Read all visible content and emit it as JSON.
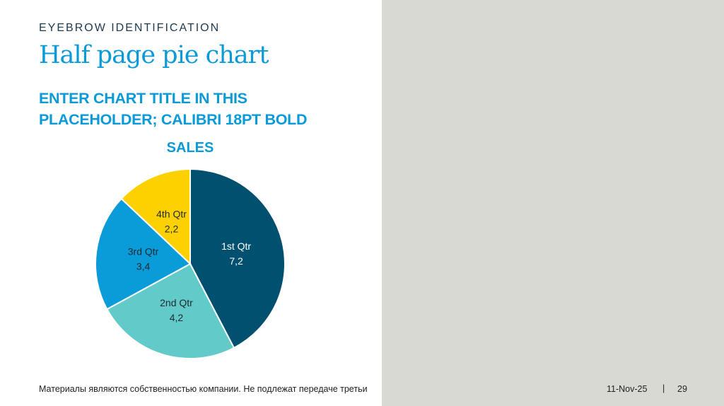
{
  "eyebrow": "EYEBROW IDENTIFICATION",
  "title": "Half page pie chart",
  "chart_title_lines": [
    "ENTER CHART TITLE IN THIS",
    "PLACEHOLDER; CALIBRI 18PT BOLD"
  ],
  "chart_data": {
    "type": "pie",
    "title": "SALES",
    "categories": [
      "1st Qtr",
      "2nd Qtr",
      "3rd Qtr",
      "4th Qtr"
    ],
    "values": [
      7.2,
      4.2,
      3.4,
      2.2
    ],
    "value_labels": [
      "7,2",
      "4,2",
      "3,4",
      "2,2"
    ],
    "colors": [
      "#02506f",
      "#62cbc9",
      "#0a9bd9",
      "#fdd100"
    ],
    "start": "top, clockwise",
    "legend": "none, data labels inside slices"
  },
  "footer": {
    "text": "Материалы являются собственностью компании. Не подлежат передаче третьи",
    "date": "11-Nov-25",
    "separator": "|",
    "page": "29"
  },
  "colors": {
    "panel": "#d9d9d4",
    "accent": "#0a9ad7"
  }
}
